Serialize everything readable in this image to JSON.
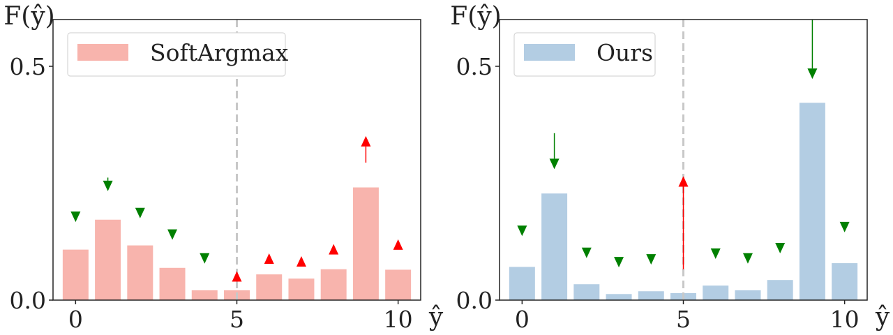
{
  "chart_data": [
    {
      "type": "bar",
      "ylabel": "F(ŷ)",
      "xlabel": "ŷ",
      "categories": [
        0,
        1,
        2,
        3,
        4,
        5,
        6,
        7,
        8,
        9,
        10
      ],
      "series": [
        {
          "name": "SoftArgmax",
          "values": [
            0.108,
            0.172,
            0.117,
            0.069,
            0.021,
            0.021,
            0.055,
            0.046,
            0.066,
            0.241,
            0.065
          ]
        }
      ],
      "xticks": [
        "0",
        "5",
        "10"
      ],
      "xtick_values": [
        0,
        5,
        10
      ],
      "yticks": [
        "0.0",
        "0.5"
      ],
      "ytick_values": [
        0,
        0.5
      ],
      "xlim": [
        -0.7,
        10.7
      ],
      "ylim": [
        0,
        0.6
      ],
      "dashed_vline_x": 5,
      "color": "#f8b4ad",
      "legend_position": "upper-left",
      "arrows": [
        {
          "x": 0,
          "y_from": 0.189,
          "y_to": 0.167,
          "direction": "down",
          "color": "#008000"
        },
        {
          "x": 1,
          "y_from": 0.262,
          "y_to": 0.233,
          "direction": "down",
          "color": "#008000"
        },
        {
          "x": 2,
          "y_from": 0.183,
          "y_to": 0.175,
          "direction": "down",
          "color": "#008000"
        },
        {
          "x": 3,
          "y_from": 0.133,
          "y_to": 0.129,
          "direction": "down",
          "color": "#008000"
        },
        {
          "x": 4,
          "y_from": 0.083,
          "y_to": 0.078,
          "direction": "down",
          "color": "#008000"
        },
        {
          "x": 5,
          "y_from": 0.058,
          "y_to": 0.062,
          "direction": "up",
          "color": "#ff0000"
        },
        {
          "x": 6,
          "y_from": 0.094,
          "y_to": 0.1,
          "direction": "up",
          "color": "#ff0000"
        },
        {
          "x": 7,
          "y_from": 0.091,
          "y_to": 0.094,
          "direction": "up",
          "color": "#ff0000"
        },
        {
          "x": 8,
          "y_from": 0.116,
          "y_to": 0.12,
          "direction": "up",
          "color": "#ff0000"
        },
        {
          "x": 9,
          "y_from": 0.294,
          "y_to": 0.351,
          "direction": "up",
          "color": "#ff0000"
        },
        {
          "x": 10,
          "y_from": 0.126,
          "y_to": 0.13,
          "direction": "up",
          "color": "#ff0000"
        }
      ]
    },
    {
      "type": "bar",
      "ylabel": "F(ŷ)",
      "xlabel": "ŷ",
      "categories": [
        0,
        1,
        2,
        3,
        4,
        5,
        6,
        7,
        8,
        9,
        10
      ],
      "series": [
        {
          "name": "Ours",
          "values": [
            0.071,
            0.228,
            0.034,
            0.013,
            0.019,
            0.015,
            0.031,
            0.021,
            0.043,
            0.422,
            0.079
          ]
        }
      ],
      "xticks": [
        "0",
        "5",
        "10"
      ],
      "xtick_values": [
        0,
        5,
        10
      ],
      "yticks": [
        "0.0",
        "0.5"
      ],
      "ytick_values": [
        0,
        0.5
      ],
      "xlim": [
        -0.7,
        10.7
      ],
      "ylim": [
        0,
        0.6
      ],
      "dashed_vline_x": 5,
      "color": "#b3cde3",
      "legend_position": "upper-left",
      "arrows": [
        {
          "x": 0,
          "y_from": 0.155,
          "y_to": 0.137,
          "direction": "down",
          "color": "#008000"
        },
        {
          "x": 1,
          "y_from": 0.357,
          "y_to": 0.28,
          "direction": "down",
          "color": "#008000"
        },
        {
          "x": 2,
          "y_from": 0.1,
          "y_to": 0.09,
          "direction": "down",
          "color": "#008000"
        },
        {
          "x": 3,
          "y_from": 0.08,
          "y_to": 0.07,
          "direction": "down",
          "color": "#008000"
        },
        {
          "x": 4,
          "y_from": 0.085,
          "y_to": 0.076,
          "direction": "down",
          "color": "#008000"
        },
        {
          "x": 5,
          "y_from": 0.066,
          "y_to": 0.265,
          "direction": "up",
          "color": "#ff0000"
        },
        {
          "x": 6,
          "y_from": 0.097,
          "y_to": 0.088,
          "direction": "down",
          "color": "#008000"
        },
        {
          "x": 7,
          "y_from": 0.087,
          "y_to": 0.078,
          "direction": "down",
          "color": "#008000"
        },
        {
          "x": 8,
          "y_from": 0.11,
          "y_to": 0.1,
          "direction": "down",
          "color": "#008000"
        },
        {
          "x": 9,
          "y_from": 0.6,
          "y_to": 0.473,
          "direction": "down",
          "color": "#008000"
        },
        {
          "x": 10,
          "y_from": 0.167,
          "y_to": 0.145,
          "direction": "down",
          "color": "#008000"
        }
      ]
    }
  ]
}
